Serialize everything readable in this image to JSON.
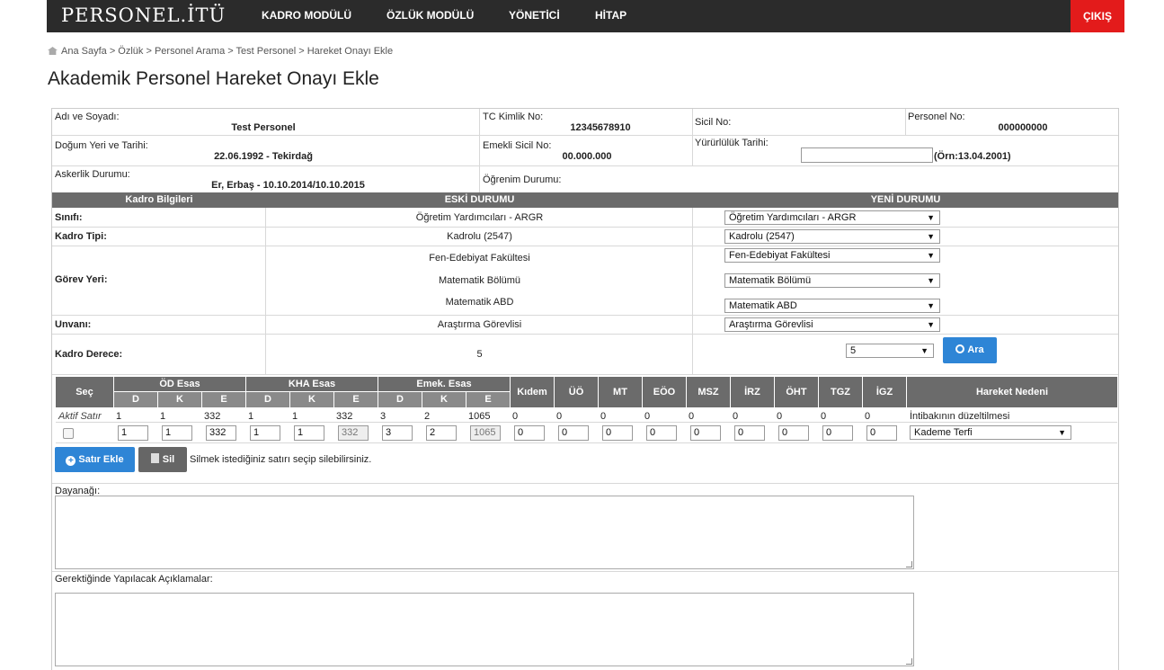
{
  "header": {
    "logo": "PERSONEL.İTÜ",
    "nav": [
      "KADRO MODÜLÜ",
      "ÖZLÜK MODÜLÜ",
      "YÖNETİCİ",
      "HİTAP"
    ],
    "logout": "ÇIKIŞ"
  },
  "breadcrumb": "Ana Sayfa > Özlük > Personel Arama > Test Personel > Hareket Onayı Ekle",
  "page_title": "Akademik Personel Hareket Onayı Ekle",
  "info": {
    "name_label": "Adı ve Soyadı:",
    "name_value": "Test Personel",
    "tc_label": "TC Kimlik No:",
    "tc_value": "12345678910",
    "sicil_label": "Sicil No:",
    "personel_label": "Personel No:",
    "personel_value": "000000000",
    "birth_label": "Doğum Yeri ve Tarihi:",
    "birth_value": "22.06.1992 - Tekirdağ",
    "emekli_label": "Emekli Sicil No:",
    "emekli_value": "00.000.000",
    "yururluk_label": "Yürürlülük Tarihi:",
    "yururluk_example": "(Örn:13.04.2001)",
    "askerlik_label": "Askerlik Durumu:",
    "askerlik_value": "Er, Erbaş - 10.10.2014/10.10.2015",
    "ogrenim_label": "Öğrenim Durumu:"
  },
  "kadro": {
    "headers": [
      "Kadro Bilgileri",
      "ESKİ DURUMU",
      "YENİ DURUMU"
    ],
    "sinif_label": "Sınıfı:",
    "sinif_old": "Öğretim Yardımcıları - ARGR",
    "sinif_new": "Öğretim Yardımcıları - ARGR",
    "tip_label": "Kadro Tipi:",
    "tip_old": "Kadrolu (2547)",
    "tip_new": "Kadrolu (2547)",
    "gorev_label": "Görev Yeri:",
    "gorev_old": [
      "Fen-Edebiyat Fakültesi",
      "Matematik Bölümü",
      "Matematik ABD"
    ],
    "gorev_new": [
      "Fen-Edebiyat Fakültesi",
      "Matematik Bölümü",
      "Matematik ABD"
    ],
    "unvan_label": "Unvanı:",
    "unvan_old": "Araştırma Görevlisi",
    "unvan_new": "Araştırma Görevlisi",
    "derece_label": "Kadro Derece:",
    "derece_old": "5",
    "derece_new": "5",
    "search_button": "Ara"
  },
  "grid": {
    "sec": "Seç",
    "groups": [
      "ÖD Esas",
      "KHA Esas",
      "Emek. Esas"
    ],
    "sub": [
      "D",
      "K",
      "E",
      "D",
      "K",
      "E",
      "D",
      "K",
      "E"
    ],
    "cols": [
      "Kıdem",
      "ÜÖ",
      "MT",
      "EÖO",
      "MSZ",
      "İRZ",
      "ÖHT",
      "TGZ",
      "İGZ"
    ],
    "reason": "Hareket Nedeni",
    "active_label": "Aktif Satır",
    "active_values": [
      "1",
      "1",
      "332",
      "1",
      "1",
      "332",
      "3",
      "2",
      "1065",
      "0",
      "0",
      "0",
      "0",
      "0",
      "0",
      "0",
      "0",
      "0"
    ],
    "active_reason": "İntibakının düzeltilmesi",
    "input_values": [
      "1",
      "1",
      "332",
      "1",
      "1",
      "332",
      "3",
      "2",
      "1065",
      "0",
      "0",
      "0",
      "0",
      "0",
      "0",
      "0",
      "0",
      "0"
    ],
    "input_reason": "Kademe Terfi"
  },
  "actions": {
    "add_row": "Satır Ekle",
    "delete": "Sil",
    "delete_hint": "Silmek istediğiniz satırı seçip silebilirsiniz."
  },
  "dayanak_label": "Dayanağı:",
  "aciklama_label": "Gerektiğinde Yapılacak Açıklamalar:"
}
